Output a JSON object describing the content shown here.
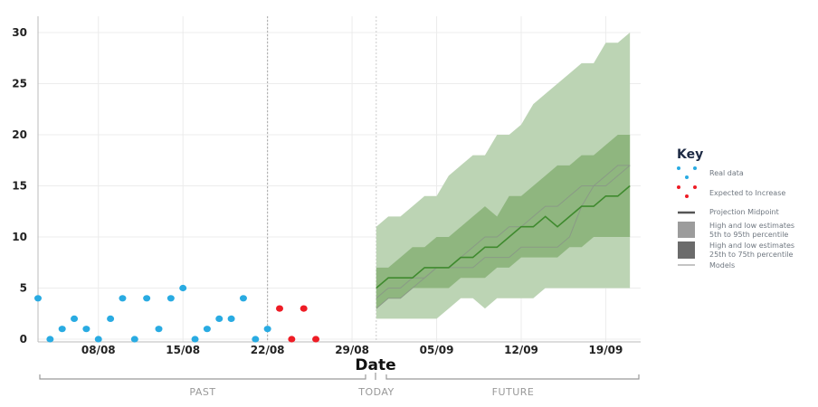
{
  "chart_data": {
    "type": "scatter+area",
    "xlabel": "Date",
    "ylim": [
      0,
      31
    ],
    "y_ticks": [
      "0",
      "5",
      "10",
      "15",
      "20",
      "25",
      "30"
    ],
    "x_ticks": [
      "08/08",
      "15/08",
      "22/08",
      "29/08",
      "05/09",
      "12/09",
      "19/09"
    ],
    "x_start": "03/08",
    "grid": true,
    "real_data": {
      "dates_from": "03/08",
      "values": [
        4,
        0,
        1,
        2,
        1,
        0,
        2,
        4,
        0,
        4,
        1,
        4,
        5,
        0,
        1,
        2,
        2,
        4,
        0,
        1
      ],
      "color": "#29abe2"
    },
    "expected_to_increase": {
      "dates_from": "23/08",
      "values": [
        3,
        0,
        3,
        0
      ],
      "color": "#ee1c25"
    },
    "projection": {
      "dates_from": "31/08",
      "p95": [
        11,
        12,
        12,
        13,
        14,
        14,
        16,
        17,
        18,
        18,
        20,
        20,
        21,
        23,
        24,
        25,
        26,
        27,
        27,
        29,
        29,
        30
      ],
      "p5": [
        2,
        2,
        2,
        2,
        2,
        2,
        3,
        4,
        4,
        3,
        4,
        4,
        4,
        4,
        5,
        5,
        5,
        5,
        5,
        5,
        5,
        5
      ],
      "p75": [
        7,
        7,
        8,
        9,
        9,
        10,
        10,
        11,
        12,
        13,
        12,
        14,
        14,
        15,
        16,
        17,
        17,
        18,
        18,
        19,
        20,
        20
      ],
      "p25": [
        3,
        4,
        4,
        5,
        5,
        5,
        5,
        6,
        6,
        6,
        7,
        7,
        8,
        8,
        8,
        8,
        9,
        9,
        10,
        10,
        10,
        10
      ],
      "midpoint": [
        5,
        6,
        6,
        6,
        7,
        7,
        7,
        8,
        8,
        9,
        9,
        10,
        11,
        11,
        12,
        11,
        12,
        13,
        13,
        14,
        14,
        15
      ],
      "models": [
        [
          3,
          4,
          4,
          5,
          6,
          7,
          7,
          8,
          9,
          10,
          10,
          11,
          11,
          12,
          13,
          13,
          14,
          15,
          15,
          16,
          17,
          17
        ],
        [
          4,
          5,
          5,
          6,
          6,
          7,
          7,
          7,
          7,
          8,
          8,
          8,
          9,
          9,
          9,
          9,
          10,
          13,
          15,
          15,
          16,
          17
        ]
      ],
      "colors": {
        "outer": "#bcd4b4",
        "inner": "#8fb67f",
        "midpoint": "#3f8a2e",
        "models": "#8a9a86"
      }
    },
    "periods": [
      "PAST",
      "TODAY",
      "FUTURE"
    ],
    "legend": {
      "title": "Key",
      "position": "right",
      "items": [
        "Real data",
        "Expected to Increase",
        "Projection Midpoint",
        "High and low estimates",
        "5th to 95th percentile",
        "High and low estimates",
        "25th to 75th percentile",
        "Models"
      ]
    }
  }
}
